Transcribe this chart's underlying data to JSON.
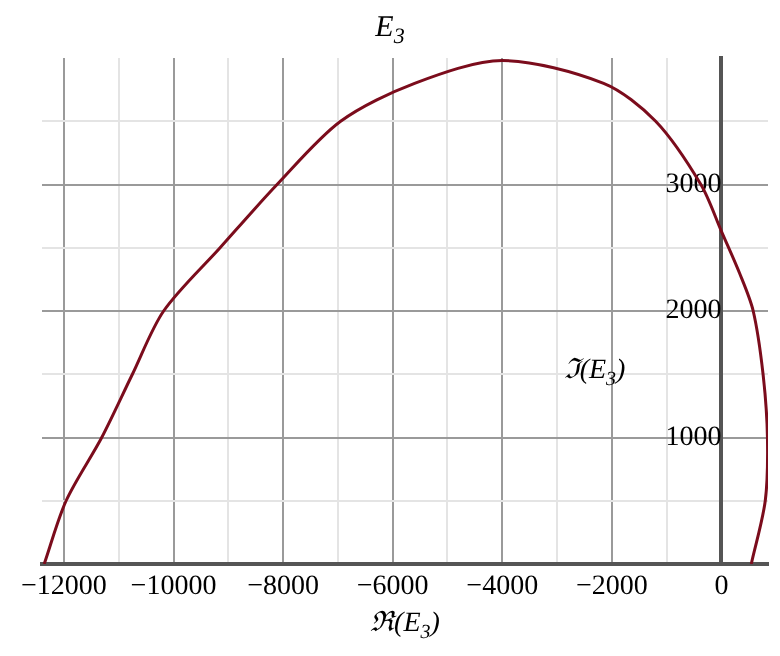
{
  "chart_data": {
    "type": "line",
    "title": "E$_{3}$",
    "xlabel": "ℜ(E$_{3}$)",
    "ylabel": "ℑ(E$_{3}$)",
    "series": [
      {
        "color": "#7b0c1c",
        "x": [
          -12360,
          -11960,
          -11310,
          -10750,
          -10180,
          -9150,
          -8110,
          -6950,
          -5600,
          -4000,
          -2150,
          -1200,
          -375,
          0,
          330,
          580,
          760,
          840,
          800,
          545
        ],
        "values": [
          0,
          500,
          1000,
          1500,
          2000,
          2500,
          3000,
          3500,
          3800,
          3980,
          3800,
          3500,
          3000,
          2630,
          2300,
          2000,
          1500,
          1000,
          500,
          0
        ]
      }
    ],
    "xlim": [
      -12400,
      850
    ],
    "xticks": [
      -12000,
      {
        "value": -11000,
        "label": null
      },
      -10000,
      {
        "value": -9000,
        "label": null
      },
      -8000,
      {
        "value": -7000,
        "label": null
      },
      -6000,
      {
        "value": -5000,
        "label": null
      },
      -4000,
      {
        "value": -3000,
        "label": null
      },
      -2000,
      {
        "value": -1000,
        "label": null
      },
      0
    ],
    "ylim": [
      0,
      4000
    ],
    "yticks": [
      {
        "value": 500,
        "label": null
      },
      1000,
      {
        "value": 1500,
        "label": null
      },
      2000,
      {
        "value": 2500,
        "label": null
      },
      3000,
      {
        "value": 3500,
        "label": null
      }
    ],
    "grid": true,
    "legend": false,
    "marker": "none",
    "line_style": "solid"
  }
}
